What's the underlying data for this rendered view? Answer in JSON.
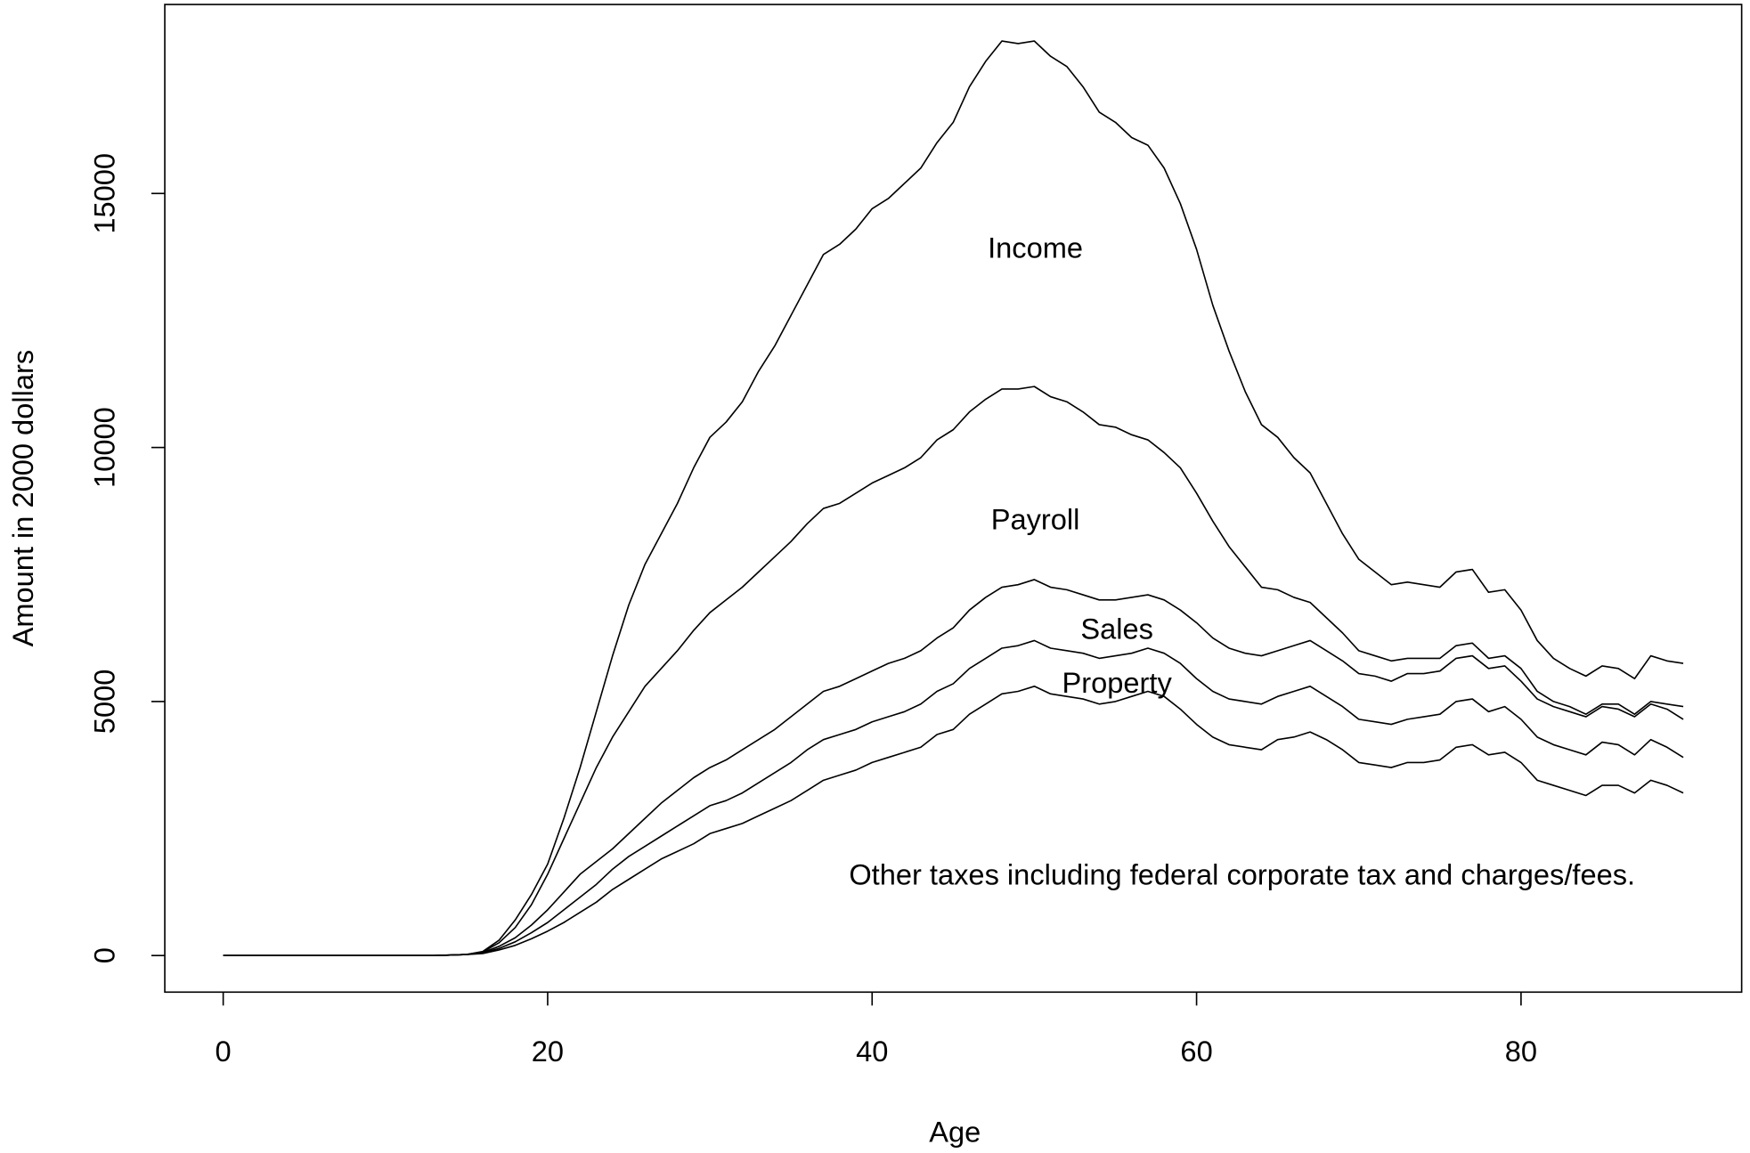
{
  "chart_data": {
    "type": "line",
    "xlabel": "Age",
    "ylabel": "Amount in 2000 dollars",
    "x": [
      0,
      1,
      2,
      3,
      4,
      5,
      6,
      7,
      8,
      9,
      10,
      11,
      12,
      13,
      14,
      15,
      16,
      17,
      18,
      19,
      20,
      21,
      22,
      23,
      24,
      25,
      26,
      27,
      28,
      29,
      30,
      31,
      32,
      33,
      34,
      35,
      36,
      37,
      38,
      39,
      40,
      41,
      42,
      43,
      44,
      45,
      46,
      47,
      48,
      49,
      50,
      51,
      52,
      53,
      54,
      55,
      56,
      57,
      58,
      59,
      60,
      61,
      62,
      63,
      64,
      65,
      66,
      67,
      68,
      69,
      70,
      71,
      72,
      73,
      74,
      75,
      76,
      77,
      78,
      79,
      80,
      81,
      82,
      83,
      84,
      85,
      86,
      87,
      88,
      89,
      90
    ],
    "series": [
      {
        "color": "#000000",
        "values": [
          0,
          0,
          0,
          0,
          0,
          0,
          0,
          0,
          0,
          0,
          0,
          0,
          0,
          0,
          10,
          20,
          40,
          110,
          200,
          330,
          480,
          650,
          850,
          1050,
          1300,
          1500,
          1700,
          1900,
          2050,
          2200,
          2400,
          2500,
          2600,
          2750,
          2900,
          3050,
          3250,
          3450,
          3550,
          3650,
          3800,
          3900,
          4000,
          4100,
          4350,
          4450,
          4750,
          4950,
          5150,
          5200,
          5300,
          5150,
          5100,
          5050,
          4950,
          5000,
          5100,
          5200,
          5100,
          4850,
          4550,
          4300,
          4150,
          4100,
          4050,
          4250,
          4300,
          4400,
          4250,
          4050,
          3800,
          3750,
          3700,
          3800,
          3800,
          3850,
          4100,
          4150,
          3950,
          4000,
          3800,
          3450,
          3350,
          3250,
          3150,
          3350,
          3350,
          3200,
          3450,
          3350,
          3200
        ]
      },
      {
        "color": "#000000",
        "values": [
          0,
          0,
          0,
          0,
          0,
          0,
          0,
          0,
          0,
          0,
          0,
          0,
          0,
          0,
          10,
          20,
          50,
          140,
          270,
          450,
          650,
          900,
          1150,
          1400,
          1700,
          1950,
          2150,
          2350,
          2550,
          2750,
          2950,
          3050,
          3200,
          3400,
          3600,
          3800,
          4050,
          4250,
          4350,
          4450,
          4600,
          4700,
          4800,
          4950,
          5200,
          5350,
          5650,
          5850,
          6050,
          6100,
          6200,
          6050,
          6000,
          5950,
          5850,
          5900,
          5950,
          6050,
          5950,
          5750,
          5450,
          5200,
          5050,
          5000,
          4950,
          5100,
          5200,
          5300,
          5100,
          4900,
          4650,
          4600,
          4550,
          4650,
          4700,
          4750,
          5000,
          5050,
          4800,
          4900,
          4650,
          4300,
          4150,
          4050,
          3950,
          4200,
          4150,
          3950,
          4250,
          4100,
          3900
        ]
      },
      {
        "color": "#000000",
        "values": [
          0,
          0,
          0,
          0,
          0,
          0,
          0,
          0,
          0,
          0,
          0,
          0,
          0,
          0,
          10,
          20,
          60,
          180,
          350,
          600,
          900,
          1250,
          1600,
          1850,
          2100,
          2400,
          2700,
          3000,
          3250,
          3500,
          3700,
          3850,
          4050,
          4250,
          4450,
          4700,
          4950,
          5200,
          5300,
          5450,
          5600,
          5750,
          5850,
          6000,
          6250,
          6450,
          6800,
          7050,
          7250,
          7300,
          7400,
          7250,
          7200,
          7100,
          7000,
          7000,
          7050,
          7100,
          7000,
          6800,
          6550,
          6250,
          6050,
          5950,
          5900,
          6000,
          6100,
          6200,
          6000,
          5800,
          5550,
          5500,
          5400,
          5550,
          5550,
          5600,
          5850,
          5900,
          5650,
          5700,
          5400,
          5050,
          4900,
          4800,
          4700,
          4900,
          4850,
          4700,
          4950,
          4850,
          4650
        ]
      },
      {
        "color": "#000000",
        "values": [
          0,
          0,
          0,
          0,
          0,
          0,
          0,
          0,
          0,
          0,
          0,
          0,
          0,
          0,
          10,
          20,
          70,
          250,
          550,
          1000,
          1600,
          2300,
          3000,
          3700,
          4300,
          4800,
          5300,
          5650,
          6000,
          6400,
          6750,
          7000,
          7250,
          7550,
          7850,
          8150,
          8500,
          8800,
          8900,
          9100,
          9300,
          9450,
          9600,
          9800,
          10150,
          10350,
          10700,
          10950,
          11150,
          11150,
          11200,
          11000,
          10900,
          10700,
          10450,
          10400,
          10250,
          10150,
          9900,
          9600,
          9100,
          8550,
          8050,
          7650,
          7250,
          7200,
          7050,
          6950,
          6650,
          6350,
          6000,
          5900,
          5800,
          5850,
          5850,
          5850,
          6100,
          6150,
          5850,
          5900,
          5650,
          5200,
          5000,
          4900,
          4750,
          4950,
          4950,
          4750,
          5000,
          4950,
          4900
        ]
      },
      {
        "color": "#000000",
        "values": [
          0,
          0,
          0,
          0,
          0,
          0,
          0,
          0,
          0,
          0,
          0,
          0,
          0,
          0,
          10,
          20,
          80,
          300,
          700,
          1200,
          1800,
          2700,
          3700,
          4800,
          5900,
          6900,
          7700,
          8300,
          8900,
          9600,
          10200,
          10500,
          10900,
          11500,
          12000,
          12600,
          13200,
          13800,
          14000,
          14300,
          14700,
          14900,
          15200,
          15500,
          16000,
          16400,
          17100,
          17600,
          18000,
          17950,
          18000,
          17700,
          17500,
          17100,
          16600,
          16400,
          16100,
          15950,
          15500,
          14800,
          13900,
          12800,
          11900,
          11100,
          10450,
          10200,
          9800,
          9500,
          8900,
          8300,
          7800,
          7550,
          7300,
          7350,
          7300,
          7250,
          7550,
          7600,
          7150,
          7200,
          6800,
          6200,
          5850,
          5650,
          5500,
          5700,
          5650,
          5450,
          5900,
          5800,
          5750
        ]
      }
    ],
    "annotations": [
      "Income",
      "Payroll",
      "Sales",
      "Property",
      "Other taxes including federal corporate tax and charges/fees."
    ],
    "xlim": [
      -3.6,
      93.6
    ],
    "ylim": [
      -720,
      18720
    ],
    "xticks": [
      0,
      20,
      40,
      60,
      80
    ],
    "yticks": [
      0,
      5000,
      10000,
      15000
    ]
  }
}
